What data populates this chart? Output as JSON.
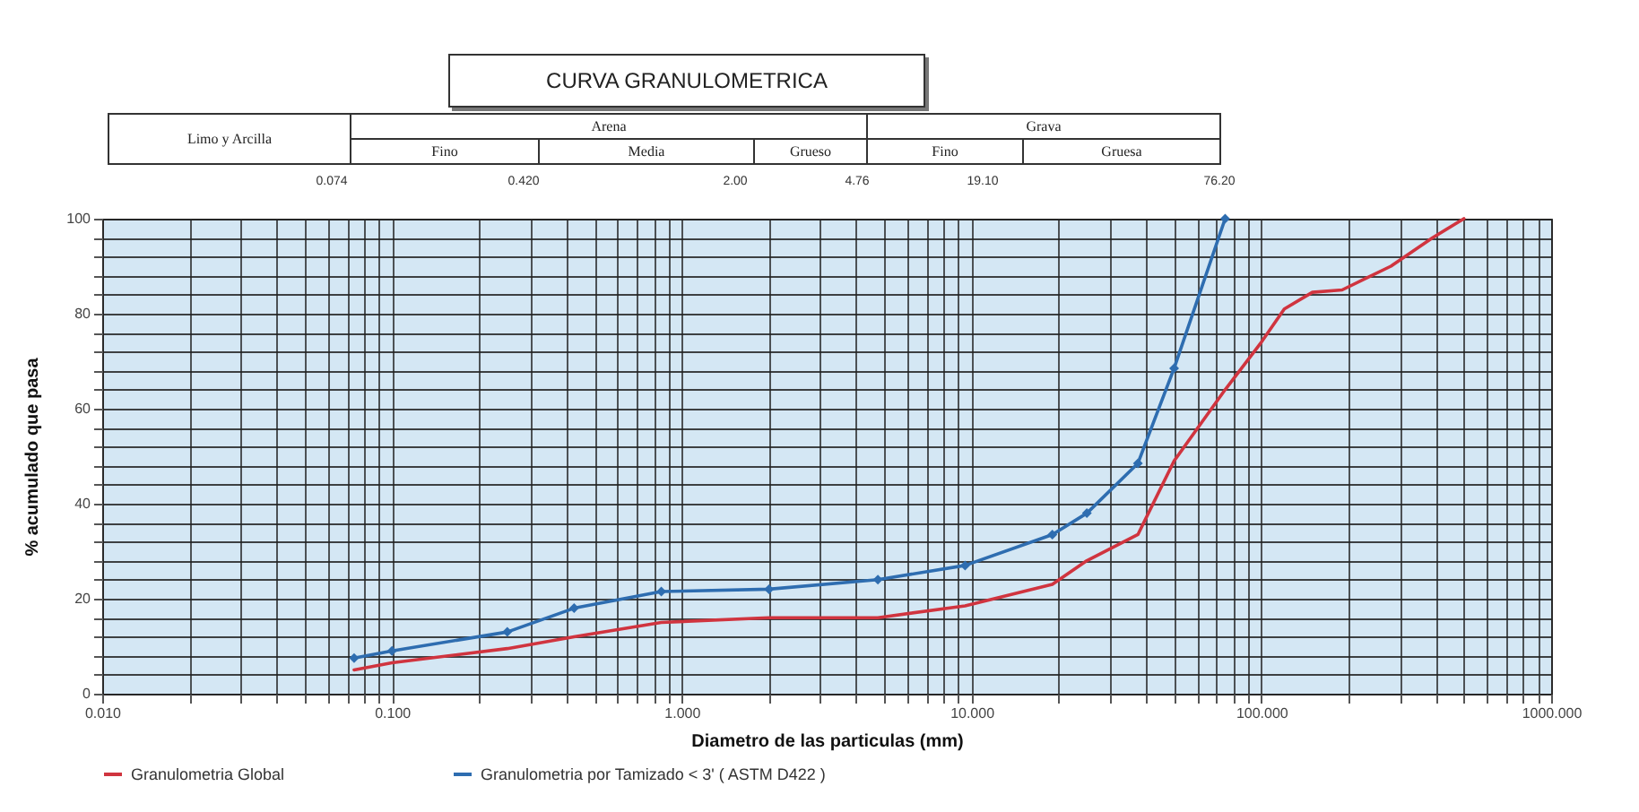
{
  "chart_data": {
    "type": "line",
    "title": "CURVA GRANULOMETRICA",
    "xlabel": "Diametro de las particulas (mm)",
    "ylabel": "% acumulado que pasa",
    "log": "x",
    "xlim": [
      0.01,
      1000
    ],
    "ylim": [
      0,
      100
    ],
    "xticks": [
      {
        "value": 0.01,
        "label": "0.010"
      },
      {
        "value": 0.02,
        "label": null
      },
      {
        "value": 0.03,
        "label": null
      },
      {
        "value": 0.04,
        "label": null
      },
      {
        "value": 0.05,
        "label": null
      },
      {
        "value": 0.06,
        "label": null
      },
      {
        "value": 0.07,
        "label": null
      },
      {
        "value": 0.08,
        "label": null
      },
      {
        "value": 0.09,
        "label": null
      },
      {
        "value": 0.1,
        "label": "0.100"
      },
      {
        "value": 0.2,
        "label": null
      },
      {
        "value": 0.3,
        "label": null
      },
      {
        "value": 0.4,
        "label": null
      },
      {
        "value": 0.5,
        "label": null
      },
      {
        "value": 0.6,
        "label": null
      },
      {
        "value": 0.7,
        "label": null
      },
      {
        "value": 0.8,
        "label": null
      },
      {
        "value": 0.9,
        "label": null
      },
      {
        "value": 1,
        "label": "1.000"
      },
      {
        "value": 2,
        "label": null
      },
      {
        "value": 3,
        "label": null
      },
      {
        "value": 4,
        "label": null
      },
      {
        "value": 5,
        "label": null
      },
      {
        "value": 6,
        "label": null
      },
      {
        "value": 7,
        "label": null
      },
      {
        "value": 8,
        "label": null
      },
      {
        "value": 9,
        "label": null
      },
      {
        "value": 10,
        "label": "10.000"
      },
      {
        "value": 20,
        "label": null
      },
      {
        "value": 30,
        "label": null
      },
      {
        "value": 40,
        "label": null
      },
      {
        "value": 50,
        "label": null
      },
      {
        "value": 60,
        "label": null
      },
      {
        "value": 70,
        "label": null
      },
      {
        "value": 80,
        "label": null
      },
      {
        "value": 90,
        "label": null
      },
      {
        "value": 100,
        "label": "100.000"
      },
      {
        "value": 200,
        "label": null
      },
      {
        "value": 300,
        "label": null
      },
      {
        "value": 400,
        "label": null
      },
      {
        "value": 500,
        "label": null
      },
      {
        "value": 600,
        "label": null
      },
      {
        "value": 700,
        "label": null
      },
      {
        "value": 800,
        "label": null
      },
      {
        "value": 900,
        "label": null
      },
      {
        "value": 1000,
        "label": "1000.000"
      }
    ],
    "yticks": [
      0,
      {
        "value": 4,
        "label": null
      },
      {
        "value": 8,
        "label": null
      },
      {
        "value": 12,
        "label": null
      },
      {
        "value": 16,
        "label": null
      },
      20,
      {
        "value": 24,
        "label": null
      },
      {
        "value": 28,
        "label": null
      },
      {
        "value": 32,
        "label": null
      },
      {
        "value": 36,
        "label": null
      },
      40,
      {
        "value": 44,
        "label": null
      },
      {
        "value": 48,
        "label": null
      },
      {
        "value": 52,
        "label": null
      },
      {
        "value": 56,
        "label": null
      },
      60,
      {
        "value": 64,
        "label": null
      },
      {
        "value": 68,
        "label": null
      },
      {
        "value": 72,
        "label": null
      },
      {
        "value": 76,
        "label": null
      },
      80,
      {
        "value": 84,
        "label": null
      },
      {
        "value": 88,
        "label": null
      },
      {
        "value": 92,
        "label": null
      },
      {
        "value": 96,
        "label": null
      },
      100
    ],
    "grid": true,
    "legend": "bottom",
    "line_style": "solid",
    "series": [
      {
        "name": "Granulometria Global",
        "color": "#d0343f",
        "marker": "none",
        "x": [
          0.074,
          0.1,
          0.25,
          0.425,
          0.85,
          2,
          4.75,
          9.5,
          19,
          25,
          37.5,
          50,
          75,
          100,
          120,
          150,
          190,
          280,
          390,
          500
        ],
        "values": [
          5,
          6.5,
          9.5,
          12,
          15,
          16,
          16,
          18.5,
          23,
          28,
          33.5,
          49,
          64,
          74,
          81,
          84.5,
          85,
          90,
          96,
          100
        ]
      },
      {
        "name": "Granulometria por Tamizado < 3' ( ASTM D422 )",
        "color": "#2e6db0",
        "marker": "diamond",
        "x": [
          0.074,
          0.1,
          0.25,
          0.425,
          0.85,
          2,
          4.75,
          9.5,
          19,
          25,
          37.5,
          50,
          75
        ],
        "values": [
          7.5,
          9,
          13,
          18,
          21.5,
          22,
          24,
          27,
          33.5,
          38,
          48.5,
          68.5,
          100
        ]
      }
    ],
    "annotations": [
      "Limo y Arcilla",
      "Arena",
      "Fino",
      "Media",
      "Grueso",
      "Grava",
      "Fino",
      "Gruesa",
      "0.074",
      "0.420",
      "2.00",
      "4.76",
      "19.10",
      "76.20"
    ]
  }
}
